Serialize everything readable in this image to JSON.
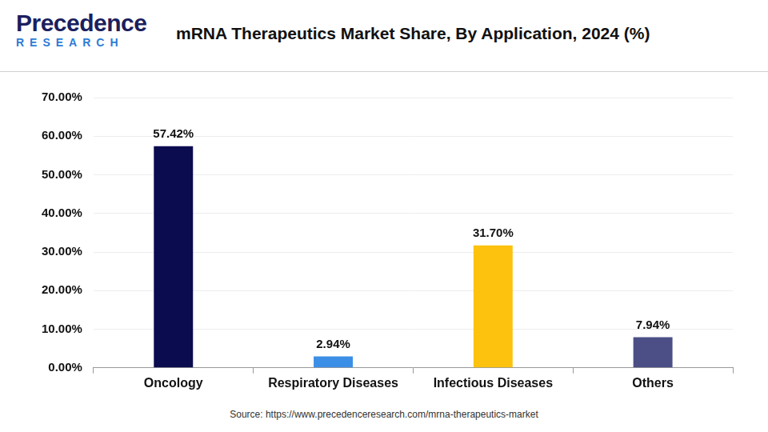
{
  "brand": {
    "name": "Precedence",
    "tagline": "RESEARCH"
  },
  "chart_data": {
    "type": "bar",
    "title": "mRNA Therapeutics Market Share, By Application, 2024 (%)",
    "source": "Source: https://www.precedenceresearch.com/mrna-therapeutics-market",
    "categories": [
      "Oncology",
      "Respiratory Diseases",
      "Infectious Diseases",
      "Others"
    ],
    "values": [
      57.42,
      2.94,
      31.7,
      7.94
    ],
    "value_labels": [
      "57.42%",
      "2.94%",
      "31.70%",
      "7.94%"
    ],
    "colors": [
      "#0b0c4f",
      "#3b8fe6",
      "#fcc20e",
      "#4b4f86"
    ],
    "ylim": [
      0,
      70
    ],
    "yticks": [
      {
        "value": 0,
        "label": "0.00%"
      },
      {
        "value": 10,
        "label": "10.00%"
      },
      {
        "value": 20,
        "label": "20.00%"
      },
      {
        "value": 30,
        "label": "30.00%"
      },
      {
        "value": 40,
        "label": "40.00%"
      },
      {
        "value": 50,
        "label": "50.00%"
      },
      {
        "value": 60,
        "label": "60.00%"
      },
      {
        "value": 70,
        "label": "70.00%"
      }
    ],
    "grid": true,
    "data_labels": true
  }
}
